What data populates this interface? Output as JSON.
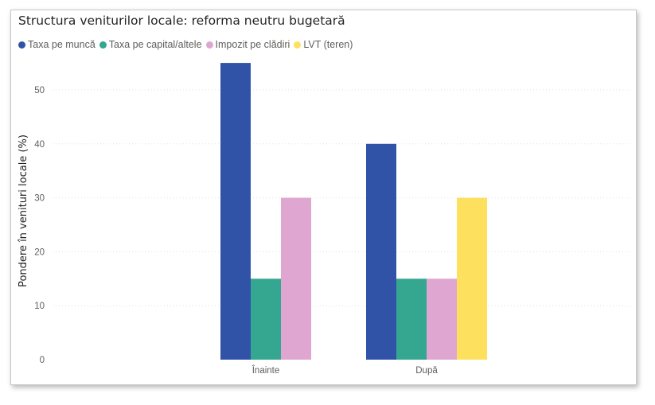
{
  "chart_data": {
    "type": "bar",
    "title": "Structura veniturilor locale: reforma neutru bugetară",
    "categories": [
      "Înainte",
      "După"
    ],
    "series": [
      {
        "name": "Taxa pe muncă",
        "color": "#3053a8",
        "values": [
          55,
          40
        ]
      },
      {
        "name": "Taxa pe capital/altele",
        "color": "#35a690",
        "values": [
          15,
          15
        ]
      },
      {
        "name": "Impozit pe clădiri",
        "color": "#dea6d0",
        "values": [
          30,
          15
        ]
      },
      {
        "name": "LVT (teren)",
        "color": "#fde05e",
        "values": [
          0,
          30
        ]
      }
    ],
    "xlabel": "",
    "ylabel": "Pondere în venituri locale (%)",
    "ylim": [
      0,
      57
    ],
    "yticks": [
      0,
      10,
      20,
      30,
      40,
      50
    ],
    "grid": true,
    "legend_position": "top-left"
  }
}
